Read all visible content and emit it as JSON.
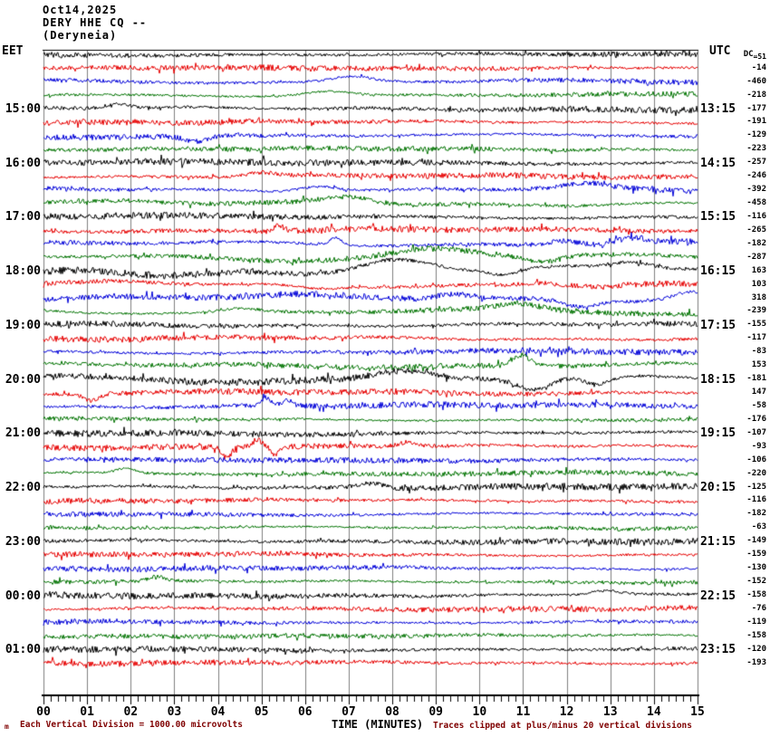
{
  "header": {
    "date": "Oct14,2025",
    "station_line": "DERY HHE CQ --",
    "location": "(Deryneia)"
  },
  "axes": {
    "left_label": "EET",
    "right_label": "UTC",
    "xlabel": "TIME (MINUTES)",
    "minute_labels": [
      "00",
      "01",
      "02",
      "03",
      "04",
      "05",
      "06",
      "07",
      "08",
      "09",
      "10",
      "11",
      "12",
      "13",
      "14",
      "15"
    ]
  },
  "footer": {
    "scale_note": "Each Vertical Division = 1000.00 microvolts",
    "clip_note": "Traces clipped at plus/minus 20 vertical divisions",
    "corner_mark": "m"
  },
  "colors": {
    "black": "#000000",
    "red": "#e60000",
    "blue": "#0000d8",
    "green": "#007300",
    "grid": "#7f7f7f",
    "annotation": "#7f0000"
  },
  "chart_data": {
    "type": "line",
    "subtype": "helicorder-seismogram",
    "title": "DERY HHE CQ -- (Deryneia) Oct14,2025",
    "minutes_per_line": 15,
    "x_range": [
      0,
      15
    ],
    "minor_ticks_per_minute": 6,
    "rows": [
      {
        "eet": "",
        "utc": "",
        "dc": "DC=51",
        "color": "black",
        "amp": 2.6,
        "wander": 1.2,
        "events": []
      },
      {
        "eet": "",
        "utc": "",
        "dc": "-14",
        "color": "red",
        "amp": 2.2,
        "wander": 1.0,
        "events": []
      },
      {
        "eet": "",
        "utc": "",
        "dc": "-460",
        "color": "blue",
        "amp": 2.4,
        "wander": 1.8,
        "events": [
          [
            7.1,
            6,
            1.0
          ]
        ]
      },
      {
        "eet": "",
        "utc": "",
        "dc": "-218",
        "color": "green",
        "amp": 2.0,
        "wander": 1.5,
        "events": [
          [
            6.5,
            5,
            1.2
          ]
        ]
      },
      {
        "eet": "15:00",
        "utc": "13:15",
        "dc": "-177",
        "color": "black",
        "amp": 2.6,
        "wander": 1.8,
        "events": [
          [
            1.7,
            5,
            0.6
          ]
        ]
      },
      {
        "eet": "",
        "utc": "",
        "dc": "-191",
        "color": "red",
        "amp": 2.2,
        "wander": 1.5,
        "events": []
      },
      {
        "eet": "",
        "utc": "",
        "dc": "-129",
        "color": "blue",
        "amp": 2.4,
        "wander": 1.8,
        "events": [
          [
            3.5,
            -6,
            0.6
          ]
        ]
      },
      {
        "eet": "",
        "utc": "",
        "dc": "-223",
        "color": "green",
        "amp": 2.0,
        "wander": 1.3,
        "events": []
      },
      {
        "eet": "16:00",
        "utc": "14:15",
        "dc": "-257",
        "color": "black",
        "amp": 2.6,
        "wander": 1.4,
        "events": []
      },
      {
        "eet": "",
        "utc": "",
        "dc": "-246",
        "color": "red",
        "amp": 2.2,
        "wander": 1.6,
        "events": [
          [
            5.0,
            4,
            0.8
          ]
        ]
      },
      {
        "eet": "",
        "utc": "",
        "dc": "-392",
        "color": "blue",
        "amp": 2.4,
        "wander": 2.6,
        "events": [
          [
            6.3,
            6,
            1.0
          ],
          [
            12.5,
            5,
            1.2
          ]
        ]
      },
      {
        "eet": "",
        "utc": "",
        "dc": "-458",
        "color": "green",
        "amp": 2.0,
        "wander": 3.0,
        "events": [
          [
            7.0,
            8,
            1.4
          ]
        ]
      },
      {
        "eet": "17:00",
        "utc": "15:15",
        "dc": "-116",
        "color": "black",
        "amp": 2.6,
        "wander": 1.8,
        "events": []
      },
      {
        "eet": "",
        "utc": "",
        "dc": "-265",
        "color": "red",
        "amp": 2.4,
        "wander": 2.0,
        "events": [
          [
            5.4,
            6,
            0.25
          ]
        ]
      },
      {
        "eet": "",
        "utc": "",
        "dc": "-182",
        "color": "blue",
        "amp": 2.6,
        "wander": 3.0,
        "events": [
          [
            6.7,
            8,
            0.3
          ],
          [
            11.9,
            5,
            0.8
          ],
          [
            13.5,
            6,
            0.8
          ]
        ]
      },
      {
        "eet": "",
        "utc": "",
        "dc": "-287",
        "color": "green",
        "amp": 2.2,
        "wander": 4.0,
        "events": [
          [
            9.0,
            9,
            2.0
          ],
          [
            11.5,
            -6,
            0.8
          ]
        ]
      },
      {
        "eet": "18:00",
        "utc": "16:15",
        "dc": "163",
        "color": "black",
        "amp": 2.8,
        "wander": 5.5,
        "events": [
          [
            8.0,
            10,
            1.8
          ],
          [
            10.6,
            -6,
            0.8
          ],
          [
            13.5,
            9,
            1.2
          ]
        ]
      },
      {
        "eet": "",
        "utc": "",
        "dc": "103",
        "color": "red",
        "amp": 2.6,
        "wander": 3.5,
        "events": [
          [
            6.3,
            -5,
            1.5
          ],
          [
            11.5,
            4,
            1.2
          ]
        ]
      },
      {
        "eet": "",
        "utc": "",
        "dc": "318",
        "color": "blue",
        "amp": 2.6,
        "wander": 4.5,
        "events": [
          [
            9.4,
            6,
            1.0
          ],
          [
            12.3,
            -7,
            0.8
          ],
          [
            14.8,
            7,
            0.8
          ]
        ]
      },
      {
        "eet": "",
        "utc": "",
        "dc": "-239",
        "color": "green",
        "amp": 2.2,
        "wander": 3.5,
        "events": [
          [
            4.5,
            4,
            1.0
          ],
          [
            10.9,
            6,
            1.0
          ]
        ]
      },
      {
        "eet": "19:00",
        "utc": "17:15",
        "dc": "-155",
        "color": "black",
        "amp": 2.8,
        "wander": 2.0,
        "events": []
      },
      {
        "eet": "",
        "utc": "",
        "dc": "-117",
        "color": "red",
        "amp": 2.4,
        "wander": 1.8,
        "events": []
      },
      {
        "eet": "",
        "utc": "",
        "dc": "-83",
        "color": "blue",
        "amp": 2.4,
        "wander": 1.8,
        "events": []
      },
      {
        "eet": "",
        "utc": "",
        "dc": "153",
        "color": "green",
        "amp": 2.2,
        "wander": 2.5,
        "events": [
          [
            10.95,
            12,
            0.5
          ]
        ]
      },
      {
        "eet": "20:00",
        "utc": "18:15",
        "dc": "-181",
        "color": "black",
        "amp": 2.8,
        "wander": 4.0,
        "events": [
          [
            8.35,
            9,
            1.5
          ],
          [
            11.25,
            -13,
            0.9
          ],
          [
            12.7,
            -9,
            0.7
          ]
        ]
      },
      {
        "eet": "",
        "utc": "",
        "dc": "147",
        "color": "red",
        "amp": 2.4,
        "wander": 1.8,
        "events": [
          [
            1.1,
            -8,
            0.4
          ]
        ]
      },
      {
        "eet": "",
        "utc": "",
        "dc": "-58",
        "color": "blue",
        "amp": 2.4,
        "wander": 2.0,
        "events": [
          [
            5.1,
            9,
            0.25
          ],
          [
            5.6,
            7,
            0.25
          ]
        ]
      },
      {
        "eet": "",
        "utc": "",
        "dc": "-176",
        "color": "green",
        "amp": 2.0,
        "wander": 1.4,
        "events": []
      },
      {
        "eet": "21:00",
        "utc": "19:15",
        "dc": "-107",
        "color": "black",
        "amp": 2.6,
        "wander": 1.8,
        "events": []
      },
      {
        "eet": "",
        "utc": "",
        "dc": "-93",
        "color": "red",
        "amp": 2.4,
        "wander": 1.8,
        "events": [
          [
            4.2,
            -11,
            0.25
          ],
          [
            4.9,
            9,
            0.25
          ],
          [
            5.3,
            -8,
            0.18
          ],
          [
            8.35,
            5,
            0.5
          ]
        ]
      },
      {
        "eet": "",
        "utc": "",
        "dc": "-106",
        "color": "blue",
        "amp": 2.2,
        "wander": 1.3,
        "events": []
      },
      {
        "eet": "",
        "utc": "",
        "dc": "-220",
        "color": "green",
        "amp": 2.0,
        "wander": 1.4,
        "events": [
          [
            1.9,
            5,
            0.5
          ]
        ]
      },
      {
        "eet": "22:00",
        "utc": "20:15",
        "dc": "-125",
        "color": "black",
        "amp": 2.6,
        "wander": 1.6,
        "events": [
          [
            7.5,
            5,
            0.6
          ]
        ]
      },
      {
        "eet": "",
        "utc": "",
        "dc": "-116",
        "color": "red",
        "amp": 2.2,
        "wander": 1.3,
        "events": []
      },
      {
        "eet": "",
        "utc": "",
        "dc": "-182",
        "color": "blue",
        "amp": 2.2,
        "wander": 1.3,
        "events": []
      },
      {
        "eet": "",
        "utc": "",
        "dc": "-63",
        "color": "green",
        "amp": 2.0,
        "wander": 1.3,
        "events": []
      },
      {
        "eet": "23:00",
        "utc": "21:15",
        "dc": "-149",
        "color": "black",
        "amp": 2.6,
        "wander": 1.4,
        "events": []
      },
      {
        "eet": "",
        "utc": "",
        "dc": "-159",
        "color": "red",
        "amp": 2.2,
        "wander": 1.3,
        "events": []
      },
      {
        "eet": "",
        "utc": "",
        "dc": "-130",
        "color": "blue",
        "amp": 2.2,
        "wander": 1.3,
        "events": []
      },
      {
        "eet": "",
        "utc": "",
        "dc": "-152",
        "color": "green",
        "amp": 2.0,
        "wander": 1.3,
        "events": [
          [
            2.6,
            5,
            0.4
          ]
        ]
      },
      {
        "eet": "00:00",
        "utc": "22:15",
        "dc": "-158",
        "color": "black",
        "amp": 2.6,
        "wander": 1.4,
        "events": [
          [
            12.9,
            5,
            0.8
          ]
        ]
      },
      {
        "eet": "",
        "utc": "",
        "dc": "-76",
        "color": "red",
        "amp": 2.2,
        "wander": 1.2,
        "events": []
      },
      {
        "eet": "",
        "utc": "",
        "dc": "-119",
        "color": "blue",
        "amp": 2.2,
        "wander": 1.2,
        "events": []
      },
      {
        "eet": "",
        "utc": "",
        "dc": "-158",
        "color": "green",
        "amp": 2.0,
        "wander": 1.2,
        "events": []
      },
      {
        "eet": "01:00",
        "utc": "23:15",
        "dc": "-120",
        "color": "black",
        "amp": 2.6,
        "wander": 1.3,
        "events": []
      },
      {
        "eet": "",
        "utc": "",
        "dc": "-193",
        "color": "red",
        "amp": 2.4,
        "wander": 1.3,
        "events": []
      }
    ]
  }
}
